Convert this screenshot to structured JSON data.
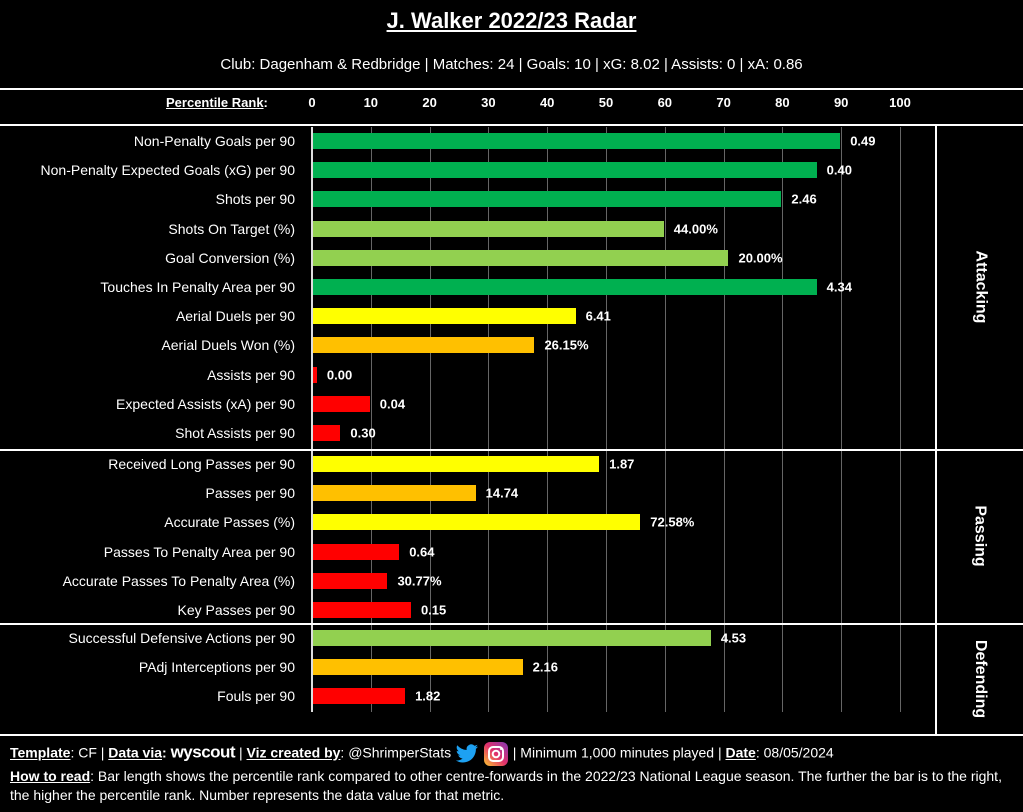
{
  "header": {
    "title": "J. Walker 2022/23 Radar",
    "subtitle": "Club: Dagenham & Redbridge | Matches: 24 | Goals: 10 | xG: 8.02 | Assists: 0 | xA: 0.86"
  },
  "colors": {
    "dark_green": "#00b050",
    "light_green": "#92d050",
    "yellow": "#ffff00",
    "orange": "#ffc000",
    "red": "#ff0000"
  },
  "chart_data": {
    "type": "bar",
    "orientation": "horizontal",
    "xlabel": "Percentile Rank",
    "xlim": [
      0,
      100
    ],
    "ticks": [
      "0",
      "10",
      "20",
      "30",
      "40",
      "50",
      "60",
      "70",
      "80",
      "90",
      "100"
    ],
    "grid": true,
    "sections": [
      {
        "name": "Attacking",
        "metrics": [
          {
            "label": "Non-Penalty Goals per 90",
            "percentile": 90,
            "value": "0.49",
            "color": "#00b050"
          },
          {
            "label": "Non-Penalty Expected Goals (xG) per 90",
            "percentile": 86,
            "value": "0.40",
            "color": "#00b050"
          },
          {
            "label": "Shots per 90",
            "percentile": 80,
            "value": "2.46",
            "color": "#00b050"
          },
          {
            "label": "Shots On Target (%)",
            "percentile": 60,
            "value": "44.00%",
            "color": "#92d050"
          },
          {
            "label": "Goal Conversion (%)",
            "percentile": 71,
            "value": "20.00%",
            "color": "#92d050"
          },
          {
            "label": "Touches In Penalty Area per 90",
            "percentile": 86,
            "value": "4.34",
            "color": "#00b050"
          },
          {
            "label": "Aerial Duels per 90",
            "percentile": 45,
            "value": "6.41",
            "color": "#ffff00"
          },
          {
            "label": "Aerial Duels Won (%)",
            "percentile": 38,
            "value": "26.15%",
            "color": "#ffc000"
          },
          {
            "label": "Assists per 90",
            "percentile": 1,
            "value": "0.00",
            "color": "#ff0000"
          },
          {
            "label": "Expected Assists (xA) per 90",
            "percentile": 10,
            "value": "0.04",
            "color": "#ff0000"
          },
          {
            "label": "Shot Assists per 90",
            "percentile": 5,
            "value": "0.30",
            "color": "#ff0000"
          }
        ]
      },
      {
        "name": "Passing",
        "metrics": [
          {
            "label": "Received Long Passes per 90",
            "percentile": 49,
            "value": "1.87",
            "color": "#ffff00"
          },
          {
            "label": "Passes per 90",
            "percentile": 28,
            "value": "14.74",
            "color": "#ffc000"
          },
          {
            "label": "Accurate Passes (%)",
            "percentile": 56,
            "value": "72.58%",
            "color": "#ffff00"
          },
          {
            "label": "Passes To Penalty Area per 90",
            "percentile": 15,
            "value": "0.64",
            "color": "#ff0000"
          },
          {
            "label": "Accurate Passes To Penalty Area (%)",
            "percentile": 13,
            "value": "30.77%",
            "color": "#ff0000"
          },
          {
            "label": "Key Passes per 90",
            "percentile": 17,
            "value": "0.15",
            "color": "#ff0000"
          }
        ]
      },
      {
        "name": "Defending",
        "metrics": [
          {
            "label": "Successful Defensive Actions per 90",
            "percentile": 68,
            "value": "4.53",
            "color": "#92d050"
          },
          {
            "label": "PAdj Interceptions per 90",
            "percentile": 36,
            "value": "2.16",
            "color": "#ffc000"
          },
          {
            "label": "Fouls per 90",
            "percentile": 16,
            "value": "1.82",
            "color": "#ff0000"
          }
        ]
      }
    ]
  },
  "footer": {
    "template_label": "Template",
    "template_value": ": CF | ",
    "data_label": "Data via",
    "data_source": "wyscout",
    "viz_label": "Viz created by",
    "viz_value": ": @ShrimperStats",
    "minimum": " | Minimum 1,000 minutes played | ",
    "date_label": "Date",
    "date_value": ": 08/05/2024",
    "how_label": "How to read",
    "how_text": ": Bar length shows the percentile rank compared to other centre-forwards in the 2022/23 National League season. The further the bar is to the right, the higher the percentile rank. Number represents the data value for that metric."
  }
}
